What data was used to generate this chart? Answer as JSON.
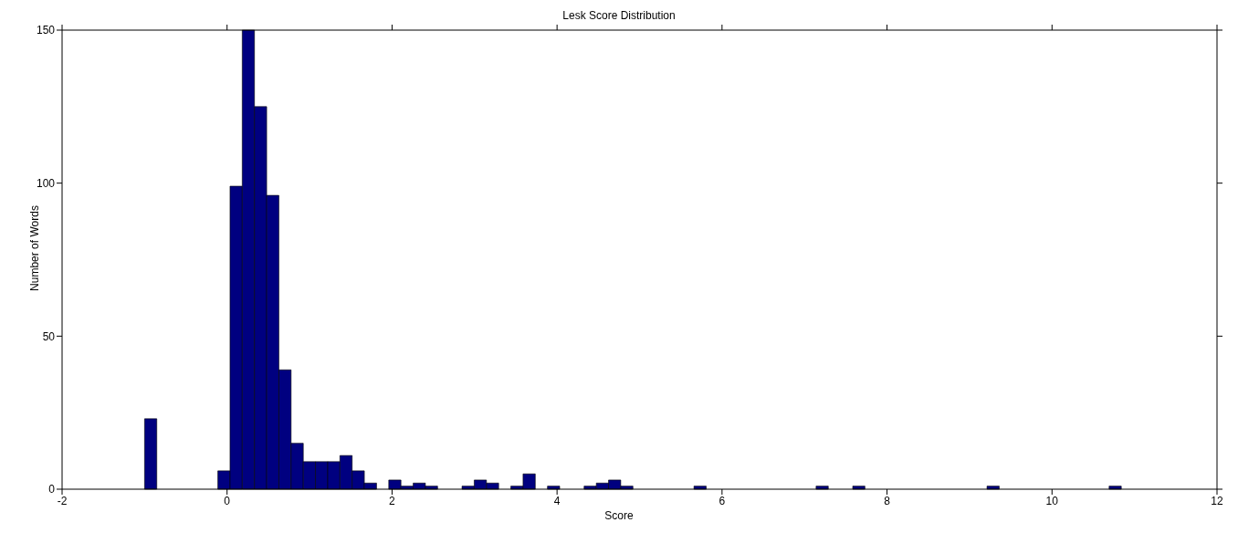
{
  "chart_data": {
    "type": "histogram",
    "title": "Lesk Score Distribution",
    "xlabel": "Score",
    "ylabel": "Number of Words",
    "color": "#000080",
    "bins": [
      -1,
      -0.852,
      -0.704,
      -0.556,
      -0.408,
      -0.26,
      -0.112,
      0.036,
      0.184,
      0.332,
      0.48,
      0.628,
      0.776,
      0.924,
      1.072,
      1.22,
      1.368,
      1.516,
      1.664,
      1.812,
      1.96,
      2.108,
      2.256,
      2.404,
      2.552,
      2.7,
      2.848,
      2.996,
      3.144,
      3.292,
      3.44,
      3.588,
      3.736,
      3.884,
      4.032,
      4.18,
      4.328,
      4.476,
      4.624,
      4.772,
      4.92,
      5.068,
      5.216,
      5.364,
      5.512,
      5.66,
      5.808,
      5.956,
      6.104,
      6.252,
      6.4,
      6.548,
      6.696,
      6.844,
      6.992,
      7.14,
      7.288,
      7.436,
      7.584,
      7.732,
      7.88,
      8.028,
      8.176,
      8.324,
      8.472,
      8.62,
      8.768,
      8.916,
      9.064,
      9.212,
      9.36,
      9.508,
      9.656,
      9.804,
      9.952,
      10.1,
      10.248,
      10.396,
      10.544,
      10.692,
      10.84
    ],
    "values": [
      23,
      0,
      0,
      0,
      0,
      0,
      6,
      99,
      150,
      125,
      96,
      39,
      15,
      9,
      9,
      9,
      11,
      6,
      2,
      0,
      3,
      1,
      2,
      1,
      0,
      0,
      1,
      3,
      2,
      0,
      1,
      5,
      0,
      1,
      0,
      0,
      1,
      2,
      3,
      1,
      0,
      0,
      0,
      0,
      0,
      1,
      0,
      0,
      0,
      0,
      0,
      0,
      0,
      0,
      0,
      1,
      0,
      0,
      1,
      0,
      0,
      0,
      0,
      0,
      0,
      0,
      0,
      0,
      0,
      1,
      0,
      0,
      0,
      0,
      0,
      0,
      0,
      0,
      0,
      1
    ],
    "xlim": [
      -2,
      12
    ],
    "xticks": [
      -2,
      0,
      2,
      4,
      6,
      8,
      10,
      12
    ],
    "ylim": [
      0,
      150
    ],
    "yticks": [
      0,
      50,
      100,
      150
    ],
    "grid": false
  }
}
